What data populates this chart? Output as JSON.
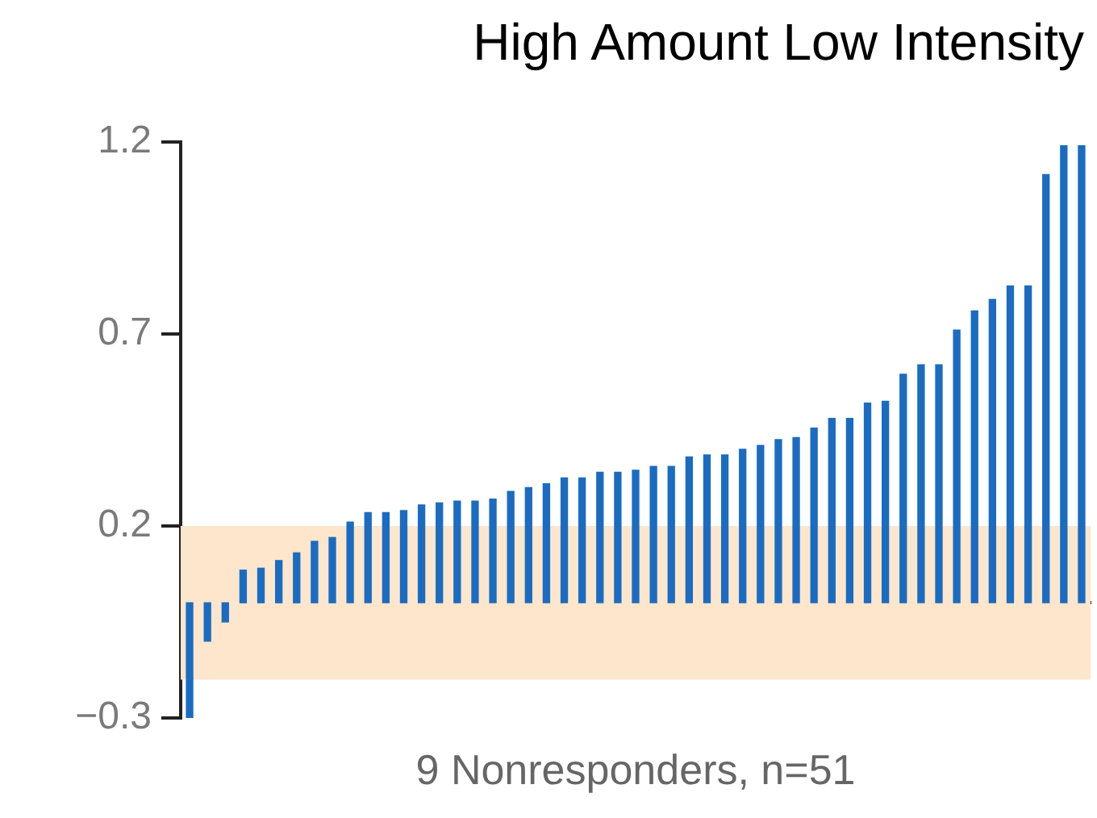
{
  "chart_data": {
    "type": "bar",
    "title": "High Amount Low Intensity",
    "xlabel": "9 Nonresponders, n=51",
    "categories": [
      null,
      null,
      null,
      null,
      null,
      null,
      null,
      null,
      null,
      null,
      null,
      null,
      null,
      null,
      null,
      null,
      null,
      null,
      null,
      null,
      null,
      null,
      null,
      null,
      null,
      null,
      null,
      null,
      null,
      null,
      null,
      null,
      null,
      null,
      null,
      null,
      null,
      null,
      null,
      null,
      null,
      null,
      null,
      null,
      null,
      null,
      null,
      null,
      null,
      null,
      null
    ],
    "values": [
      -0.3,
      -0.1,
      -0.05,
      0.085,
      0.09,
      0.11,
      0.13,
      0.16,
      0.17,
      0.21,
      0.235,
      0.235,
      0.24,
      0.255,
      0.26,
      0.265,
      0.265,
      0.27,
      0.29,
      0.3,
      0.31,
      0.325,
      0.325,
      0.34,
      0.34,
      0.345,
      0.355,
      0.355,
      0.38,
      0.385,
      0.385,
      0.4,
      0.41,
      0.425,
      0.43,
      0.455,
      0.48,
      0.48,
      0.52,
      0.525,
      0.595,
      0.62,
      0.62,
      0.71,
      0.76,
      0.79,
      0.825,
      0.825,
      1.115,
      1.19,
      1.19
    ],
    "color": "#1b6cc1",
    "ylim": [
      -0.3,
      1.2
    ],
    "yticks": [
      -0.3,
      0.2,
      0.7,
      1.2
    ],
    "grid": false,
    "legend": false,
    "tick_labels": "y",
    "bands": [
      {
        "axis": "y",
        "from": -0.2,
        "to": 0.2,
        "color": "#fde6cc"
      }
    ]
  }
}
